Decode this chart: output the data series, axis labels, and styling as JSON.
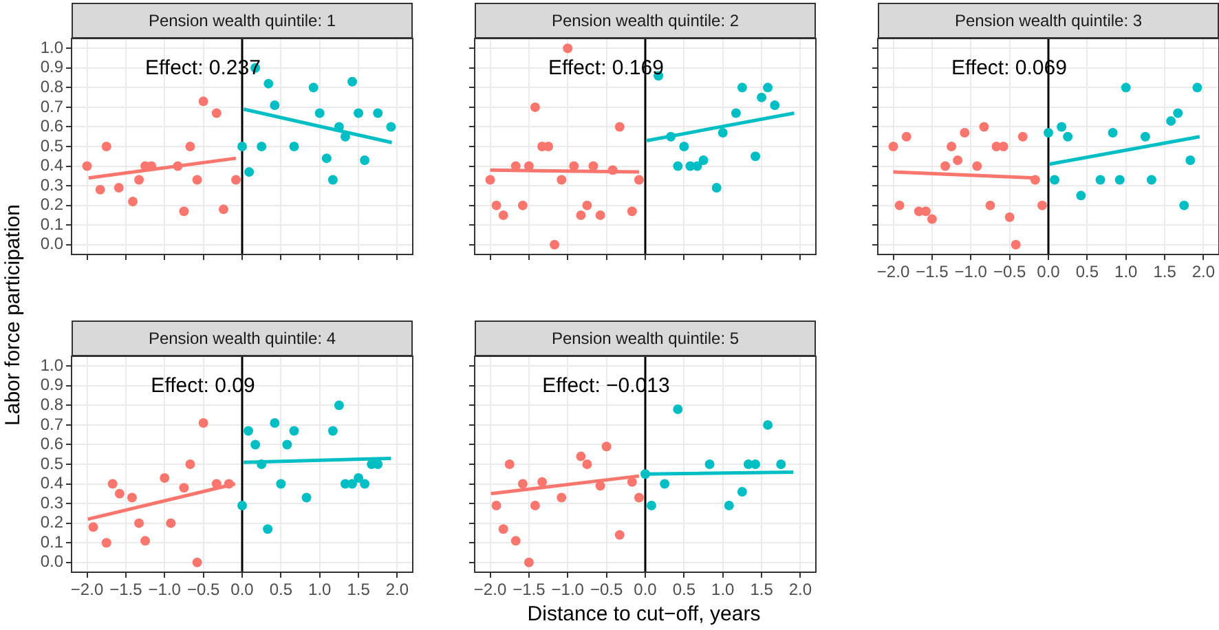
{
  "chart_data": [
    {
      "type": "scatter",
      "title": "Pension wealth quintile: 1",
      "annotations": [
        "Effect: 0.237"
      ],
      "xlim": [
        -2.2,
        2.2
      ],
      "xticks": [
        {
          "value": -2,
          "label": null
        },
        {
          "value": -1.5,
          "label": null
        },
        {
          "value": -1,
          "label": null
        },
        {
          "value": -0.5,
          "label": null
        },
        {
          "value": 0,
          "label": null
        },
        {
          "value": 0.5,
          "label": null
        },
        {
          "value": 1,
          "label": null
        },
        {
          "value": 1.5,
          "label": null
        },
        {
          "value": 2,
          "label": null
        }
      ],
      "ylim": [
        -0.05,
        1.05
      ],
      "yticks": [
        {
          "value": 0,
          "label": "0.0"
        },
        0.1,
        0.2,
        0.3,
        0.4,
        0.5,
        0.6,
        0.7,
        0.8,
        0.9,
        {
          "value": 1,
          "label": "1.0"
        }
      ],
      "grid": true,
      "tick_labels": "y",
      "marker": "circle",
      "ref_lines": [
        {
          "axis": "x",
          "value": 0,
          "color": "#000000"
        }
      ],
      "series": [
        {
          "color": "#f8766d",
          "x": [
            -2.0,
            -1.83,
            -1.75,
            -1.59,
            -1.41,
            -1.33,
            -1.25,
            -1.17,
            -0.83,
            -0.75,
            -0.67,
            -0.58,
            -0.5,
            -0.33,
            -0.24,
            -0.08
          ],
          "values": [
            0.4,
            0.28,
            0.5,
            0.29,
            0.22,
            0.33,
            0.4,
            0.4,
            0.4,
            0.17,
            0.5,
            0.33,
            0.73,
            0.67,
            0.18,
            0.33
          ]
        },
        {
          "type": "line",
          "marker": "none",
          "color": "#f8766d",
          "x": [
            -1.98,
            -0.08
          ],
          "values": [
            0.34,
            0.44
          ]
        },
        {
          "color": "#00bfc4",
          "x": [
            0.0,
            0.09,
            0.17,
            0.25,
            0.34,
            0.42,
            0.67,
            0.92,
            1.0,
            1.09,
            1.17,
            1.25,
            1.33,
            1.42,
            1.5,
            1.58,
            1.75,
            1.92
          ],
          "values": [
            0.5,
            0.37,
            0.9,
            0.5,
            0.82,
            0.71,
            0.5,
            0.8,
            0.67,
            0.44,
            0.33,
            0.6,
            0.55,
            0.83,
            0.67,
            0.43,
            0.67,
            0.6
          ]
        },
        {
          "type": "line",
          "marker": "none",
          "color": "#00bfc4",
          "x": [
            0.02,
            1.93
          ],
          "values": [
            0.69,
            0.52
          ]
        }
      ]
    },
    {
      "type": "scatter",
      "title": "Pension wealth quintile: 2",
      "annotations": [
        "Effect: 0.169"
      ],
      "xlim": [
        -2.2,
        2.2
      ],
      "xticks": [
        {
          "value": -2,
          "label": null
        },
        {
          "value": -1.5,
          "label": null
        },
        {
          "value": -1,
          "label": null
        },
        {
          "value": -0.5,
          "label": null
        },
        {
          "value": 0,
          "label": null
        },
        {
          "value": 0.5,
          "label": null
        },
        {
          "value": 1,
          "label": null
        },
        {
          "value": 1.5,
          "label": null
        },
        {
          "value": 2,
          "label": null
        }
      ],
      "ylim": [
        -0.05,
        1.05
      ],
      "yticks": [
        {
          "value": 0,
          "label": null
        },
        {
          "value": 0.1,
          "label": null
        },
        {
          "value": 0.2,
          "label": null
        },
        {
          "value": 0.3,
          "label": null
        },
        {
          "value": 0.4,
          "label": null
        },
        {
          "value": 0.5,
          "label": null
        },
        {
          "value": 0.6,
          "label": null
        },
        {
          "value": 0.7,
          "label": null
        },
        {
          "value": 0.8,
          "label": null
        },
        {
          "value": 0.9,
          "label": null
        },
        {
          "value": 1,
          "label": null
        }
      ],
      "grid": true,
      "tick_labels": false,
      "marker": "circle",
      "ref_lines": [
        {
          "axis": "x",
          "value": 0,
          "color": "#000000"
        }
      ],
      "series": [
        {
          "color": "#f8766d",
          "x": [
            -2.0,
            -1.92,
            -1.83,
            -1.67,
            -1.58,
            -1.5,
            -1.42,
            -1.33,
            -1.25,
            -1.17,
            -1.08,
            -1.0,
            -0.92,
            -0.83,
            -0.75,
            -0.67,
            -0.58,
            -0.42,
            -0.33,
            -0.17,
            -0.08
          ],
          "values": [
            0.33,
            0.2,
            0.15,
            0.4,
            0.2,
            0.4,
            0.7,
            0.5,
            0.5,
            0.0,
            0.33,
            1.0,
            0.4,
            0.15,
            0.2,
            0.4,
            0.15,
            0.38,
            0.6,
            0.17,
            0.33
          ]
        },
        {
          "type": "line",
          "marker": "none",
          "color": "#f8766d",
          "x": [
            -2.0,
            -0.08
          ],
          "values": [
            0.38,
            0.37
          ]
        },
        {
          "color": "#00bfc4",
          "x": [
            0.17,
            0.33,
            0.42,
            0.5,
            0.58,
            0.67,
            0.75,
            0.92,
            1.0,
            1.17,
            1.25,
            1.42,
            1.5,
            1.58,
            1.67
          ],
          "values": [
            0.86,
            0.55,
            0.4,
            0.5,
            0.4,
            0.4,
            0.43,
            0.29,
            0.57,
            0.67,
            0.8,
            0.45,
            0.75,
            0.8,
            0.71
          ]
        },
        {
          "type": "line",
          "marker": "none",
          "color": "#00bfc4",
          "x": [
            0.02,
            1.92
          ],
          "values": [
            0.53,
            0.67
          ]
        }
      ]
    },
    {
      "type": "scatter",
      "title": "Pension wealth quintile: 3",
      "annotations": [
        "Effect: 0.069"
      ],
      "xlim": [
        -2.2,
        2.2
      ],
      "xticks": [
        {
          "value": -2,
          "label": "−2.0"
        },
        {
          "value": -1.5,
          "label": "−1.5"
        },
        {
          "value": -1,
          "label": "−1.0"
        },
        {
          "value": -0.5,
          "label": "−0.5"
        },
        {
          "value": 0,
          "label": "0.0"
        },
        {
          "value": 0.5,
          "label": "0.5"
        },
        {
          "value": 1,
          "label": "1.0"
        },
        {
          "value": 1.5,
          "label": "1.5"
        },
        {
          "value": 2,
          "label": "2.0"
        }
      ],
      "ylim": [
        -0.05,
        1.05
      ],
      "yticks": [
        {
          "value": 0,
          "label": null
        },
        {
          "value": 0.1,
          "label": null
        },
        {
          "value": 0.2,
          "label": null
        },
        {
          "value": 0.3,
          "label": null
        },
        {
          "value": 0.4,
          "label": null
        },
        {
          "value": 0.5,
          "label": null
        },
        {
          "value": 0.6,
          "label": null
        },
        {
          "value": 0.7,
          "label": null
        },
        {
          "value": 0.8,
          "label": null
        },
        {
          "value": 0.9,
          "label": null
        },
        {
          "value": 1,
          "label": null
        }
      ],
      "grid": true,
      "tick_labels": "x",
      "marker": "circle",
      "ref_lines": [
        {
          "axis": "x",
          "value": 0,
          "color": "#000000"
        }
      ],
      "series": [
        {
          "color": "#f8766d",
          "x": [
            -2.0,
            -1.92,
            -1.83,
            -1.67,
            -1.58,
            -1.5,
            -1.33,
            -1.25,
            -1.17,
            -1.08,
            -0.92,
            -0.83,
            -0.75,
            -0.67,
            -0.58,
            -0.5,
            -0.42,
            -0.33,
            -0.17,
            -0.08
          ],
          "values": [
            0.5,
            0.2,
            0.55,
            0.17,
            0.17,
            0.13,
            0.4,
            0.5,
            0.43,
            0.57,
            0.4,
            0.6,
            0.2,
            0.5,
            0.5,
            0.14,
            0.0,
            0.55,
            0.33,
            0.2
          ]
        },
        {
          "type": "line",
          "marker": "none",
          "color": "#f8766d",
          "x": [
            -2.0,
            -0.17
          ],
          "values": [
            0.37,
            0.34
          ]
        },
        {
          "color": "#00bfc4",
          "x": [
            0.0,
            0.08,
            0.17,
            0.25,
            0.42,
            0.67,
            0.83,
            0.92,
            1.0,
            1.25,
            1.33,
            1.58,
            1.67,
            1.75,
            1.83,
            1.92
          ],
          "values": [
            0.57,
            0.33,
            0.6,
            0.55,
            0.25,
            0.33,
            0.57,
            0.33,
            0.8,
            0.55,
            0.33,
            0.63,
            0.67,
            0.2,
            0.43,
            0.8
          ]
        },
        {
          "type": "line",
          "marker": "none",
          "color": "#00bfc4",
          "x": [
            0.01,
            1.95
          ],
          "values": [
            0.41,
            0.55
          ]
        }
      ]
    },
    {
      "type": "scatter",
      "title": "Pension wealth quintile: 4",
      "annotations": [
        "Effect: 0.09"
      ],
      "ylabel": "Labor force participation",
      "xlim": [
        -2.2,
        2.2
      ],
      "xticks": [
        {
          "value": -2,
          "label": "−2.0"
        },
        {
          "value": -1.5,
          "label": "−1.5"
        },
        {
          "value": -1,
          "label": "−1.0"
        },
        {
          "value": -0.5,
          "label": "−0.5"
        },
        {
          "value": 0,
          "label": "0.0"
        },
        {
          "value": 0.5,
          "label": "0.5"
        },
        {
          "value": 1,
          "label": "1.0"
        },
        {
          "value": 1.5,
          "label": "1.5"
        },
        {
          "value": 2,
          "label": "2.0"
        }
      ],
      "ylim": [
        -0.05,
        1.05
      ],
      "yticks": [
        {
          "value": 0,
          "label": "0.0"
        },
        0.1,
        0.2,
        0.3,
        0.4,
        0.5,
        0.6,
        0.7,
        0.8,
        0.9,
        {
          "value": 1,
          "label": "1.0"
        }
      ],
      "grid": true,
      "marker": "circle",
      "ref_lines": [
        {
          "axis": "x",
          "value": 0,
          "color": "#000000"
        }
      ],
      "series": [
        {
          "color": "#f8766d",
          "x": [
            -1.92,
            -1.75,
            -1.67,
            -1.58,
            -1.42,
            -1.33,
            -1.25,
            -1.0,
            -0.92,
            -0.75,
            -0.67,
            -0.58,
            -0.5,
            -0.33,
            -0.17
          ],
          "values": [
            0.18,
            0.1,
            0.4,
            0.35,
            0.33,
            0.2,
            0.11,
            0.43,
            0.2,
            0.38,
            0.5,
            0.0,
            0.71,
            0.4,
            0.4
          ]
        },
        {
          "type": "line",
          "marker": "none",
          "color": "#f8766d",
          "x": [
            -1.99,
            -0.09
          ],
          "values": [
            0.22,
            0.4
          ]
        },
        {
          "color": "#00bfc4",
          "x": [
            0.0,
            0.08,
            0.17,
            0.25,
            0.33,
            0.42,
            0.5,
            0.58,
            0.67,
            0.83,
            1.17,
            1.25,
            1.33,
            1.42,
            1.5,
            1.58,
            1.67,
            1.75
          ],
          "values": [
            0.29,
            0.67,
            0.6,
            0.5,
            0.17,
            0.71,
            0.4,
            0.6,
            0.67,
            0.33,
            0.67,
            0.8,
            0.4,
            0.4,
            0.43,
            0.4,
            0.5,
            0.5
          ]
        },
        {
          "type": "line",
          "marker": "none",
          "color": "#00bfc4",
          "x": [
            0.02,
            1.92
          ],
          "values": [
            0.51,
            0.53
          ]
        }
      ]
    },
    {
      "type": "scatter",
      "title": "Pension wealth quintile: 5",
      "annotations": [
        "Effect: −0.013"
      ],
      "xlabel": "Distance to cut−off, years",
      "xlim": [
        -2.2,
        2.2
      ],
      "xticks": [
        {
          "value": -2,
          "label": "−2.0"
        },
        {
          "value": -1.5,
          "label": "−1.5"
        },
        {
          "value": -1,
          "label": "−1.0"
        },
        {
          "value": -0.5,
          "label": "−0.5"
        },
        {
          "value": 0,
          "label": "0.0"
        },
        {
          "value": 0.5,
          "label": "0.5"
        },
        {
          "value": 1,
          "label": "1.0"
        },
        {
          "value": 1.5,
          "label": "1.5"
        },
        {
          "value": 2,
          "label": "2.0"
        }
      ],
      "ylim": [
        -0.05,
        1.05
      ],
      "yticks": [
        {
          "value": 0,
          "label": null
        },
        {
          "value": 0.1,
          "label": null
        },
        {
          "value": 0.2,
          "label": null
        },
        {
          "value": 0.3,
          "label": null
        },
        {
          "value": 0.4,
          "label": null
        },
        {
          "value": 0.5,
          "label": null
        },
        {
          "value": 0.6,
          "label": null
        },
        {
          "value": 0.7,
          "label": null
        },
        {
          "value": 0.8,
          "label": null
        },
        {
          "value": 0.9,
          "label": null
        },
        {
          "value": 1,
          "label": null
        }
      ],
      "grid": true,
      "tick_labels": "x",
      "marker": "circle",
      "ref_lines": [
        {
          "axis": "x",
          "value": 0,
          "color": "#000000"
        }
      ],
      "series": [
        {
          "color": "#f8766d",
          "x": [
            -1.92,
            -1.83,
            -1.75,
            -1.67,
            -1.58,
            -1.5,
            -1.42,
            -1.33,
            -1.08,
            -0.83,
            -0.75,
            -0.58,
            -0.5,
            -0.33,
            -0.17,
            -0.08
          ],
          "values": [
            0.29,
            0.17,
            0.5,
            0.11,
            0.4,
            0.0,
            0.29,
            0.41,
            0.33,
            0.54,
            0.5,
            0.39,
            0.59,
            0.14,
            0.41,
            0.33
          ]
        },
        {
          "type": "line",
          "marker": "none",
          "color": "#f8766d",
          "x": [
            -1.99,
            -0.08
          ],
          "values": [
            0.35,
            0.44
          ]
        },
        {
          "color": "#00bfc4",
          "x": [
            0.0,
            0.08,
            0.25,
            0.42,
            0.83,
            1.08,
            1.25,
            1.33,
            1.42,
            1.58,
            1.75
          ],
          "values": [
            0.45,
            0.29,
            0.4,
            0.78,
            0.5,
            0.29,
            0.36,
            0.5,
            0.5,
            0.7,
            0.5
          ]
        },
        {
          "type": "line",
          "marker": "none",
          "color": "#00bfc4",
          "x": [
            0.02,
            1.91
          ],
          "values": [
            0.45,
            0.46
          ]
        }
      ]
    }
  ]
}
